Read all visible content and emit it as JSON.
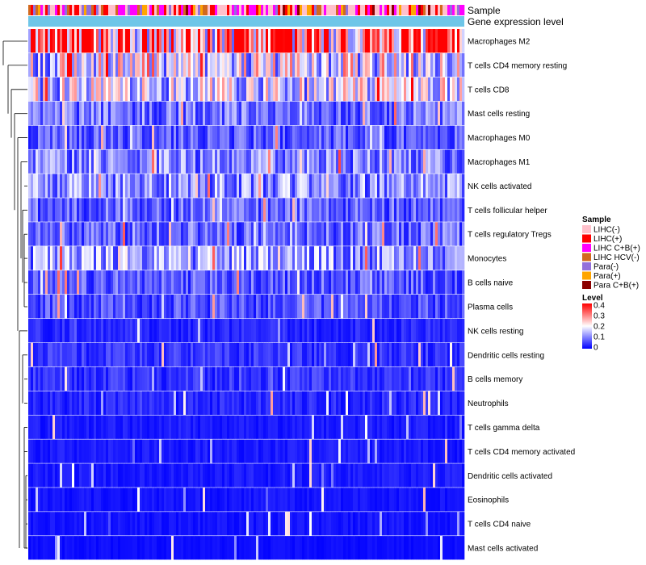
{
  "chart_data": {
    "type": "heatmap",
    "title": "",
    "annotation_tracks": [
      "Sample",
      "Gene expression level"
    ],
    "rows": [
      "Macrophages M2",
      "T cells CD4 memory resting",
      "T cells CD8",
      "Mast cells resting",
      "Macrophages M0",
      "Macrophages M1",
      "NK cells activated",
      "T cells follicular helper",
      "T cells regulatory  Tregs",
      "Monocytes",
      "B cells naive",
      "Plasma cells",
      "NK cells resting",
      "Dendritic cells resting",
      "B cells memory",
      "Neutrophils",
      "T cells gamma delta",
      "T cells CD4 memory activated",
      "Dendritic cells activated",
      "Eosinophils",
      "T cells CD4 naive",
      "Mast cells activated"
    ],
    "row_mean_levels": [
      0.32,
      0.18,
      0.16,
      0.09,
      0.07,
      0.1,
      0.11,
      0.08,
      0.08,
      0.12,
      0.07,
      0.06,
      0.03,
      0.04,
      0.04,
      0.03,
      0.02,
      0.02,
      0.02,
      0.015,
      0.015,
      0.01
    ],
    "n_columns": 180,
    "legend_sample": {
      "title": "Sample",
      "items": [
        {
          "label": "LIHC(-)",
          "color": "#FFC0CB"
        },
        {
          "label": "LIHC(+)",
          "color": "#FF0000"
        },
        {
          "label": "LIHC C+B(+)",
          "color": "#FF00FF"
        },
        {
          "label": "LIHC HCV(-)",
          "color": "#D2691E"
        },
        {
          "label": "Para(-)",
          "color": "#9370DB"
        },
        {
          "label": "Para(+)",
          "color": "#FFA500"
        },
        {
          "label": "Para C+B(+)",
          "color": "#8B0000"
        }
      ]
    },
    "legend_level": {
      "title": "Level",
      "ticks": [
        "0.4",
        "0.3",
        "0.2",
        "0.1",
        "0"
      ],
      "range": [
        0,
        0.4
      ]
    },
    "colorscale": {
      "low": "#0000FF",
      "mid": "#FFFFFF",
      "high": "#FF0000"
    },
    "gene_expression_track_color": "#6EC6E8"
  }
}
